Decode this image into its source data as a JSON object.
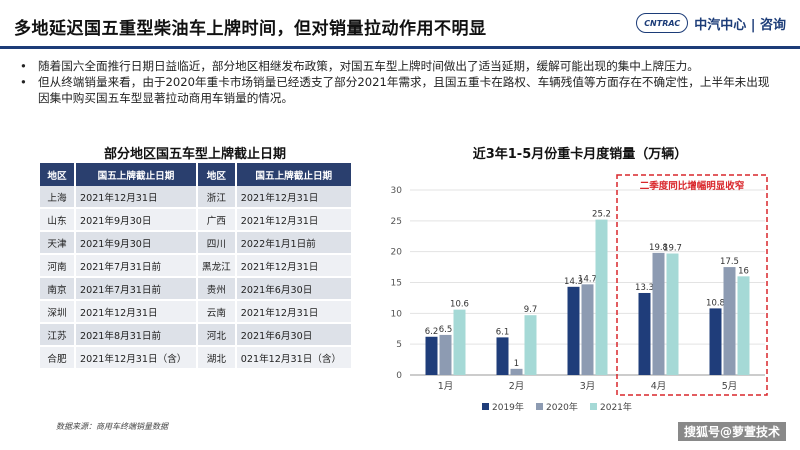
{
  "title": "多地延迟国五重型柴油车上牌时间，但对销量拉动作用不明显",
  "logo": {
    "badge": "CNTRAC",
    "text": "中汽中心 | 咨询"
  },
  "bullets": [
    "随着国六全面推行日期日益临近，部分地区相继发布政策，对国五车型上牌时间做出了适当延期，缓解可能出现的集中上牌压力。",
    "但从终端销量来看，由于2020年重卡市场销量已经透支了部分2021年需求，且国五重卡在路权、车辆残值等方面存在不确定性，上半年未出现因集中购买国五车型显著拉动商用车销量的情况。"
  ],
  "table": {
    "title": "部分地区国五车型上牌截止日期",
    "headers": [
      "地区",
      "国五上牌截止日期",
      "地区",
      "国五上牌截止日期"
    ],
    "rows": [
      [
        "上海",
        "2021年12月31日",
        "浙江",
        "2021年12月31日"
      ],
      [
        "山东",
        "2021年9月30日",
        "广西",
        "2021年12月31日"
      ],
      [
        "天津",
        "2021年9月30日",
        "四川",
        "2022年1月1日前"
      ],
      [
        "河南",
        "2021年7月31日前",
        "黑龙江",
        "2021年12月31日"
      ],
      [
        "南京",
        "2021年7月31日前",
        "贵州",
        "2021年6月30日"
      ],
      [
        "深圳",
        "2021年12月31日",
        "云南",
        "2021年12月31日"
      ],
      [
        "江苏",
        "2021年8月31日前",
        "河北",
        "2021年6月30日"
      ],
      [
        "合肥",
        "2021年12月31日（含）",
        "湖北",
        "021年12月31日（含）"
      ]
    ]
  },
  "source": "数据来源：商用车终端销量数据",
  "footer": "搜狐号@萝萱技术",
  "colors": {
    "s2019": "#1f3d7a",
    "s2020": "#8d9bb2",
    "s2021": "#a5d9d6",
    "highlight": "#d9262b"
  },
  "chart_data": {
    "type": "bar",
    "title": "近3年1-5月份重卡月度销量（万辆）",
    "categories": [
      "1月",
      "2月",
      "3月",
      "4月",
      "5月"
    ],
    "series": [
      {
        "name": "2019年",
        "values": [
          6.2,
          6.1,
          14.3,
          13.3,
          10.8
        ]
      },
      {
        "name": "2020年",
        "values": [
          6.5,
          1.0,
          14.7,
          19.8,
          17.5
        ]
      },
      {
        "name": "2021年",
        "values": [
          10.6,
          9.7,
          25.2,
          19.7,
          16.0
        ]
      }
    ],
    "yticks": [
      0,
      5,
      10,
      15,
      20,
      25,
      30
    ],
    "ylim": [
      0,
      30
    ],
    "annotation": "二季度同比增幅明显收窄",
    "legend": "bottom"
  }
}
